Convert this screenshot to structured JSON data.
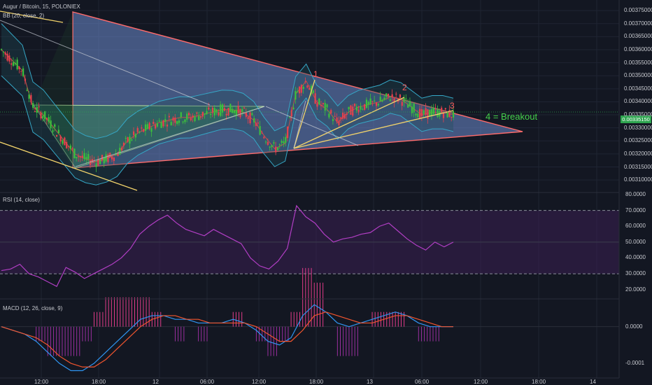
{
  "header": {
    "symbol": "Augur / Bitcoin, 15, POLONIEX",
    "indicator_bb": "BB (20, close, 2)"
  },
  "rsi_label": "RSI (14, close)",
  "macd_label": "MACD (12, 26, close, 9)",
  "current_price": "0.00335150",
  "annotations": {
    "wave1": "1",
    "wave2": "2",
    "wave3": "3",
    "breakout": "4 = Breakout"
  },
  "colors": {
    "background": "#131722",
    "bull": "#3cc13c",
    "bear": "#e8404d",
    "triangle_fill": "#6d8dd0",
    "triangle_edge": "#ff6b6b",
    "yellow_line": "#f2d36b",
    "bb_band": "#35a7c6",
    "rsi": "#b13ec4",
    "macd": "#2f96f3",
    "signal": "#f2552e",
    "wave_label": "#ff5a5a",
    "breakout_text": "#44d14a"
  },
  "chart_data": [
    {
      "type": "candlestick",
      "title": "Augur / Bitcoin, 15, POLONIEX",
      "y_axis_ticks": [
        "0.00375000",
        "0.00370000",
        "0.00365000",
        "0.00360000",
        "0.00355000",
        "0.00350000",
        "0.00345000",
        "0.00340000",
        "0.00335000",
        "0.00330000",
        "0.00325000",
        "0.00320000",
        "0.00315000",
        "0.00310000"
      ],
      "x_axis_ticks": [
        "12:00",
        "18:00",
        "12",
        "06:00",
        "12:00",
        "18:00",
        "13",
        "06:00",
        "12:00",
        "18:00",
        "14"
      ],
      "ylim": [
        0.00306,
        0.00378
      ],
      "approx_close_path": [
        0.0036,
        0.00356,
        0.00352,
        0.00338,
        0.00335,
        0.0033,
        0.00325,
        0.0032,
        0.00318,
        0.00317,
        0.00318,
        0.0032,
        0.00325,
        0.00328,
        0.0033,
        0.00332,
        0.00333,
        0.00334,
        0.00334,
        0.00335,
        0.00336,
        0.00337,
        0.00337,
        0.00336,
        0.00333,
        0.00327,
        0.00322,
        0.00324,
        0.00343,
        0.00348,
        0.0034,
        0.00337,
        0.00332,
        0.00336,
        0.00338,
        0.00339,
        0.0034,
        0.00342,
        0.00341,
        0.00338,
        0.00335,
        0.00336,
        0.00336,
        0.00335
      ]
    },
    {
      "type": "line",
      "title": "RSI (14, close)",
      "y_axis_ticks": [
        "80.0000",
        "70.0000",
        "60.0000",
        "50.0000",
        "40.0000",
        "30.0000",
        "20.0000"
      ],
      "ylim": [
        15,
        80
      ],
      "levels": [
        70,
        30
      ],
      "series": [
        {
          "values": [
            32,
            33,
            36,
            30,
            28,
            25,
            22,
            34,
            31,
            27,
            30,
            33,
            36,
            40,
            46,
            55,
            60,
            64,
            67,
            62,
            58,
            56,
            54,
            58,
            55,
            52,
            49,
            40,
            35,
            33,
            38,
            46,
            73,
            66,
            62,
            55,
            50,
            52,
            53,
            55,
            56,
            60,
            62,
            57,
            52,
            48,
            45,
            50,
            47,
            50
          ]
        }
      ]
    },
    {
      "type": "line",
      "title": "MACD (12, 26, close, 9)",
      "y_axis_ticks": [
        "0.0000",
        "-0.0001"
      ],
      "ylim": [
        -0.00014,
        7e-05
      ],
      "series": [
        {
          "name": "MACD",
          "values": [
            0.0,
            -1e-05,
            -2e-05,
            -4e-05,
            -7e-05,
            -0.0001,
            -0.00012,
            -0.00012,
            -0.0001,
            -7e-05,
            -4e-05,
            -1e-05,
            2e-05,
            3e-05,
            3e-05,
            2e-05,
            2e-05,
            1e-05,
            1e-05,
            1e-05,
            2e-05,
            1e-05,
            -1e-05,
            -4e-05,
            -5e-05,
            -3e-05,
            3e-05,
            6e-05,
            4e-05,
            1e-05,
            0.0,
            1e-05,
            2e-05,
            3e-05,
            4e-05,
            3e-05,
            1e-05,
            0.0,
            0.0,
            0.0
          ]
        },
        {
          "name": "Signal",
          "values": [
            0.0,
            -1e-05,
            -2e-05,
            -3e-05,
            -5e-05,
            -8e-05,
            -0.0001,
            -0.00011,
            -0.00011,
            -9e-05,
            -6e-05,
            -3e-05,
            0.0,
            2e-05,
            3e-05,
            3e-05,
            2e-05,
            2e-05,
            1e-05,
            1e-05,
            1e-05,
            1e-05,
            0.0,
            -2e-05,
            -4e-05,
            -4e-05,
            -1e-05,
            3e-05,
            4e-05,
            3e-05,
            2e-05,
            1e-05,
            1e-05,
            2e-05,
            3e-05,
            3e-05,
            2e-05,
            1e-05,
            0.0,
            0.0
          ]
        }
      ]
    }
  ]
}
